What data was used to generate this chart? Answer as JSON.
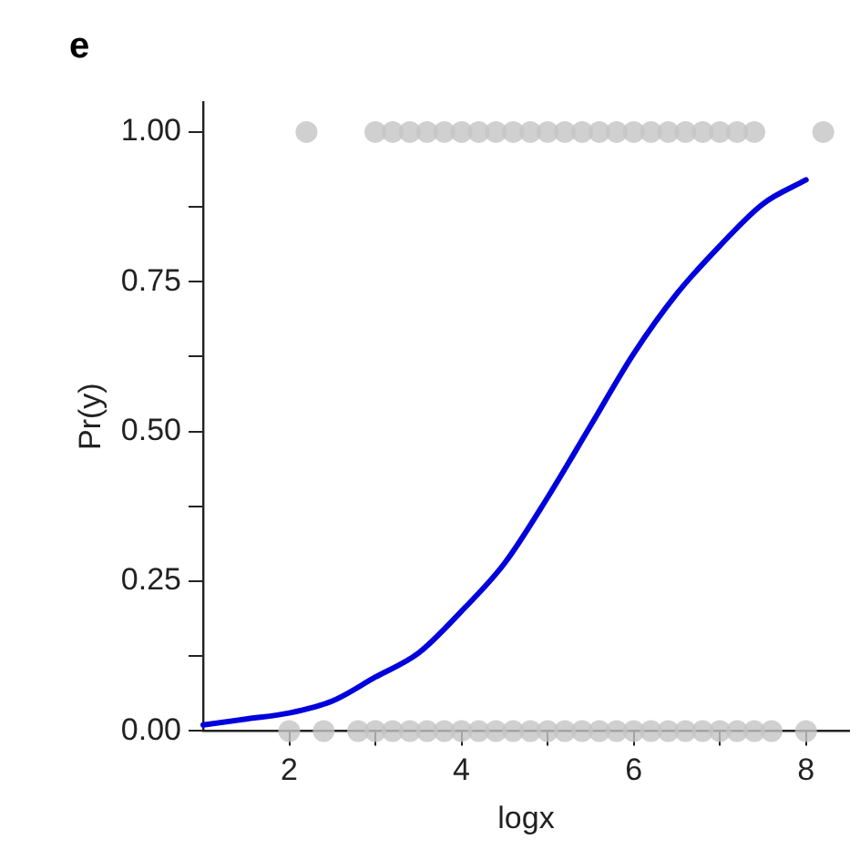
{
  "chart_data": {
    "type": "line",
    "title": "e",
    "xlabel": "logx",
    "ylabel": "Pr(y)",
    "xlim": [
      1,
      8.5
    ],
    "xticks": [
      2,
      {
        "value": 3,
        "label": null
      },
      4,
      {
        "value": 5,
        "label": null
      },
      6,
      {
        "value": 7,
        "label": null
      },
      8
    ],
    "ylim": [
      0,
      1.05
    ],
    "yticks": [
      {
        "value": 0,
        "label": "0.00"
      },
      {
        "value": 0.125,
        "label": null
      },
      {
        "value": 0.25,
        "label": "0.25"
      },
      {
        "value": 0.375,
        "label": null
      },
      {
        "value": 0.5,
        "label": "0.50"
      },
      {
        "value": 0.625,
        "label": null
      },
      {
        "value": 0.75,
        "label": "0.75"
      },
      {
        "value": 0.875,
        "label": null
      },
      {
        "value": 1,
        "label": "1.00"
      }
    ],
    "grid": false,
    "legend": false,
    "series": [
      {
        "type": "scatter",
        "marker": "circle",
        "color": "#c4c4c4",
        "x": [
          2.2,
          3.0,
          3.2,
          3.4,
          3.6,
          3.8,
          4.0,
          4.2,
          4.4,
          4.6,
          4.8,
          5.0,
          5.2,
          5.4,
          5.6,
          5.8,
          6.0,
          6.2,
          6.4,
          6.6,
          6.8,
          7.0,
          7.2,
          7.4,
          8.2
        ],
        "values": [
          1,
          1,
          1,
          1,
          1,
          1,
          1,
          1,
          1,
          1,
          1,
          1,
          1,
          1,
          1,
          1,
          1,
          1,
          1,
          1,
          1,
          1,
          1,
          1,
          1
        ]
      },
      {
        "type": "scatter",
        "marker": "circle",
        "color": "#c4c4c4",
        "x": [
          2.0,
          2.4,
          2.8,
          3.0,
          3.2,
          3.4,
          3.6,
          3.8,
          4.0,
          4.2,
          4.4,
          4.6,
          4.8,
          5.0,
          5.2,
          5.4,
          5.6,
          5.8,
          6.0,
          6.2,
          6.4,
          6.6,
          6.8,
          7.0,
          7.2,
          7.4,
          7.6,
          8.0
        ],
        "values": [
          0,
          0,
          0,
          0,
          0,
          0,
          0,
          0,
          0,
          0,
          0,
          0,
          0,
          0,
          0,
          0,
          0,
          0,
          0,
          0,
          0,
          0,
          0,
          0,
          0,
          0,
          0,
          0
        ]
      },
      {
        "marker": "none",
        "color": "#0000dd",
        "x": [
          1,
          1.5,
          2,
          2.5,
          3,
          3.5,
          4,
          4.5,
          5,
          5.5,
          6,
          6.5,
          7,
          7.5,
          8
        ],
        "values": [
          0.01,
          0.02,
          0.03,
          0.05,
          0.09,
          0.13,
          0.2,
          0.28,
          0.39,
          0.51,
          0.63,
          0.73,
          0.81,
          0.88,
          0.92
        ]
      }
    ]
  }
}
